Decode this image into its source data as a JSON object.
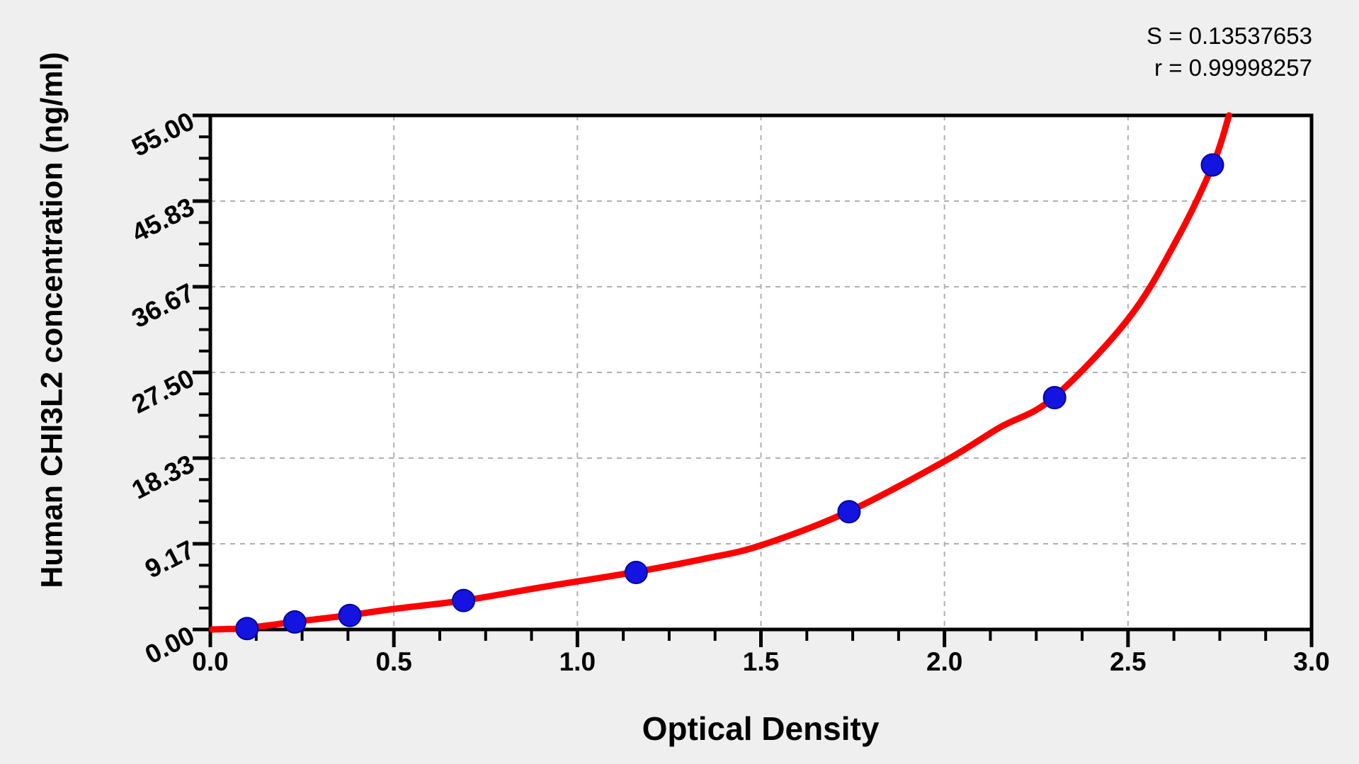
{
  "stats": {
    "s_label": "S = 0.13537653",
    "r_label": "r = 0.99998257"
  },
  "chart_data": {
    "type": "scatter",
    "title": "",
    "xlabel": "Optical Density",
    "ylabel": "Human CHI3L2 concentration (ng/ml)",
    "xlim": [
      0.0,
      3.0
    ],
    "ylim": [
      0.0,
      55.0
    ],
    "x_tick_labels": [
      "0.0",
      "0.5",
      "1.0",
      "1.5",
      "2.0",
      "2.5",
      "3.0"
    ],
    "y_tick_labels": [
      "55.00",
      "45.83",
      "36.67",
      "27.50",
      "18.33",
      "9.17",
      "0.00"
    ],
    "x_major_step": 0.5,
    "y_major_step": 9.1667,
    "minor_ticks_per_major": 4,
    "grid": "dashed gray lines at major ticks, both axes",
    "legend": "none",
    "stats": {
      "S": 0.13537653,
      "r": 0.99998257
    },
    "series": [
      {
        "name": "standard-points",
        "type": "scatter",
        "x": [
          0.1,
          0.23,
          0.38,
          0.69,
          1.16,
          1.74,
          2.3,
          2.73
        ],
        "y": [
          0.1,
          0.8,
          1.5,
          3.1,
          6.1,
          12.6,
          24.8,
          49.7
        ]
      },
      {
        "name": "fitted-curve",
        "type": "line",
        "x": [
          0.005,
          0.05,
          0.1,
          0.233,
          0.377,
          0.5,
          0.692,
          0.9,
          1.156,
          1.35,
          1.5,
          1.737,
          2.0,
          2.15,
          2.296,
          2.5,
          2.63,
          2.731,
          2.775
        ],
        "y": [
          0.0,
          0.05,
          0.15,
          0.83,
          1.52,
          2.2,
          3.11,
          4.5,
          6.14,
          7.6,
          9.0,
          12.58,
          18.0,
          21.6,
          24.77,
          33.2,
          41.5,
          49.7,
          55.0
        ]
      }
    ],
    "colors": {
      "curve": "#fe0000",
      "point_fill": "#1414e0",
      "point_stroke": "#0000a0",
      "grid": "#b0b0b0",
      "frame": "#000000",
      "plot_bg": "#ffffff",
      "page_bg": "#efefef",
      "text": "#000000"
    }
  }
}
